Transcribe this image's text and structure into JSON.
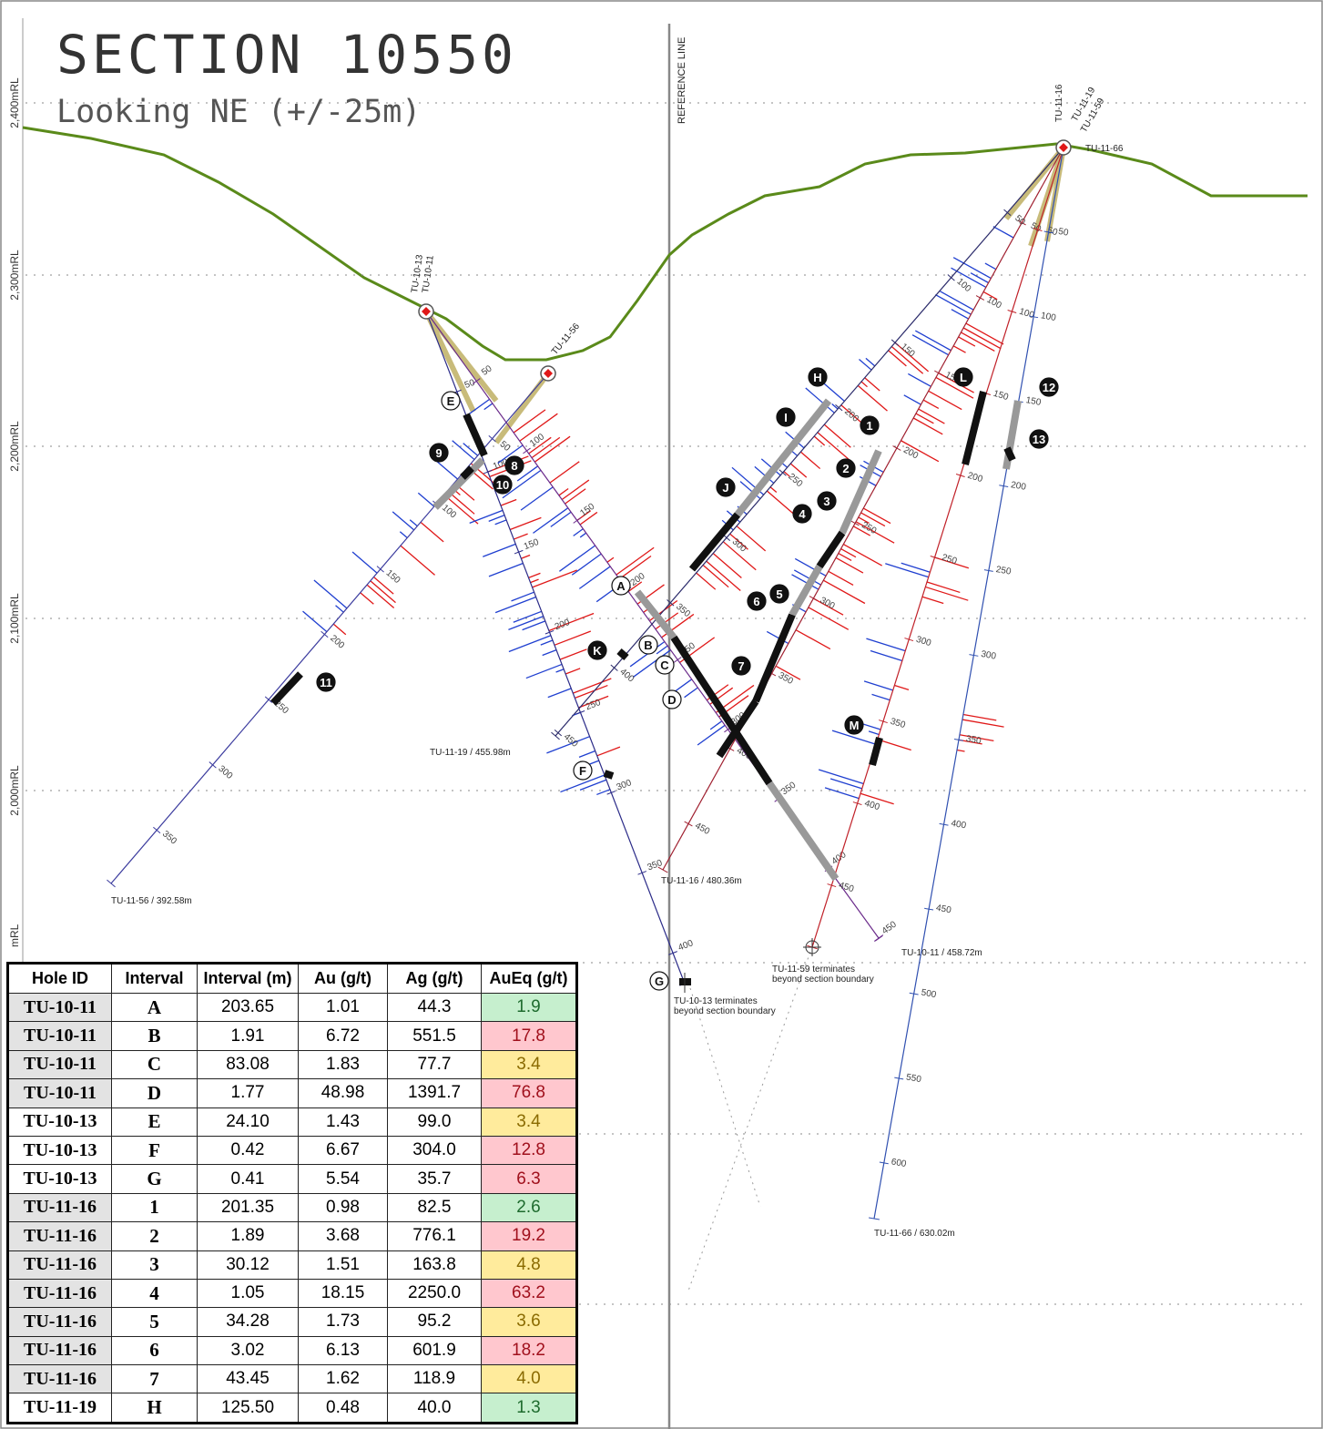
{
  "header": {
    "title": "SECTION 10550",
    "subtitle": "Looking NE (+/-25m)"
  },
  "reference_line": "REFERENCE LINE",
  "rl_labels": [
    "2,400mRL",
    "2,300mRL",
    "2,200mRL",
    "2,100mRL",
    "2,000mRL",
    "mRL"
  ],
  "holes": [
    {
      "id": "TU-11-56",
      "end_label": "TU-11-56 / 392.58m",
      "depth_labels": [
        50,
        100,
        150,
        200,
        250,
        300,
        350
      ]
    },
    {
      "id": "TU-10-13",
      "depth_labels": [
        50,
        100,
        150,
        200,
        250,
        300,
        350,
        400
      ]
    },
    {
      "id": "TU-10-11",
      "end_label": "TU-10-11 / 458.72m",
      "depth_labels": [
        50,
        100,
        150,
        200,
        250,
        300,
        350,
        400,
        450
      ]
    },
    {
      "id": "TU-11-16",
      "end_label": "TU-11-16 / 480.36m",
      "depth_labels": [
        50,
        100,
        150,
        200,
        250,
        300,
        350,
        400,
        450
      ]
    },
    {
      "id": "TU-11-19",
      "end_label": "TU-11-19 / 455.98m",
      "depth_labels": [
        50,
        100,
        150,
        200,
        250,
        300,
        350,
        400,
        450
      ]
    },
    {
      "id": "TU-11-59",
      "depth_labels": [
        50,
        100,
        150,
        200,
        250,
        300,
        350,
        400,
        450
      ]
    },
    {
      "id": "TU-11-66",
      "end_label": "TU-11-66 / 630.02m",
      "depth_labels": [
        50,
        100,
        150,
        200,
        250,
        300,
        350,
        400,
        450,
        500,
        550,
        600
      ]
    }
  ],
  "notes": [
    [
      "TU-10-13 terminates",
      "beyond section boundary"
    ],
    [
      "TU-11-59 terminates",
      "beyond section boundary"
    ]
  ],
  "markers": [
    "A",
    "B",
    "C",
    "D",
    "E",
    "F",
    "G",
    "H",
    "I",
    "J",
    "K",
    "L",
    "M",
    "1",
    "2",
    "3",
    "4",
    "5",
    "6",
    "7",
    "8",
    "9",
    "10",
    "11",
    "12",
    "13"
  ],
  "table": {
    "columns": [
      "Hole ID",
      "Interval",
      "Interval (m)",
      "Au (g/t)",
      "Ag (g/t)",
      "AuEq (g/t)"
    ],
    "rows": [
      [
        "TU-10-11",
        "A",
        "203.65",
        "1.01",
        "44.3",
        "1.9"
      ],
      [
        "TU-10-11",
        "B",
        "1.91",
        "6.72",
        "551.5",
        "17.8"
      ],
      [
        "TU-10-11",
        "C",
        "83.08",
        "1.83",
        "77.7",
        "3.4"
      ],
      [
        "TU-10-11",
        "D",
        "1.77",
        "48.98",
        "1391.7",
        "76.8"
      ],
      [
        "TU-10-13",
        "E",
        "24.10",
        "1.43",
        "99.0",
        "3.4"
      ],
      [
        "TU-10-13",
        "F",
        "0.42",
        "6.67",
        "304.0",
        "12.8"
      ],
      [
        "TU-10-13",
        "G",
        "0.41",
        "5.54",
        "35.7",
        "6.3"
      ],
      [
        "TU-11-16",
        "1",
        "201.35",
        "0.98",
        "82.5",
        "2.6"
      ],
      [
        "TU-11-16",
        "2",
        "1.89",
        "3.68",
        "776.1",
        "19.2"
      ],
      [
        "TU-11-16",
        "3",
        "30.12",
        "1.51",
        "163.8",
        "4.8"
      ],
      [
        "TU-11-16",
        "4",
        "1.05",
        "18.15",
        "2250.0",
        "63.2"
      ],
      [
        "TU-11-16",
        "5",
        "34.28",
        "1.73",
        "95.2",
        "3.6"
      ],
      [
        "TU-11-16",
        "6",
        "3.02",
        "6.13",
        "601.9",
        "18.2"
      ],
      [
        "TU-11-16",
        "7",
        "43.45",
        "1.62",
        "118.9",
        "4.0"
      ],
      [
        "TU-11-19",
        "H",
        "125.50",
        "0.48",
        "40.0",
        "1.3"
      ]
    ],
    "hole_shading": [
      "#e3e3e3",
      "#e3e3e3",
      "#e3e3e3",
      "#e3e3e3",
      "#ffffff",
      "#ffffff",
      "#ffffff",
      "#e3e3e3",
      "#e3e3e3",
      "#e3e3e3",
      "#e3e3e3",
      "#e3e3e3",
      "#e3e3e3",
      "#e3e3e3",
      "#ffffff"
    ],
    "auEq_fill": [
      "#c6efce",
      "#ffc7ce",
      "#ffeb9c",
      "#ffc7ce",
      "#ffeb9c",
      "#ffc7ce",
      "#ffc7ce",
      "#c6efce",
      "#ffc7ce",
      "#ffeb9c",
      "#ffc7ce",
      "#ffeb9c",
      "#ffc7ce",
      "#ffeb9c",
      "#c6efce"
    ]
  }
}
